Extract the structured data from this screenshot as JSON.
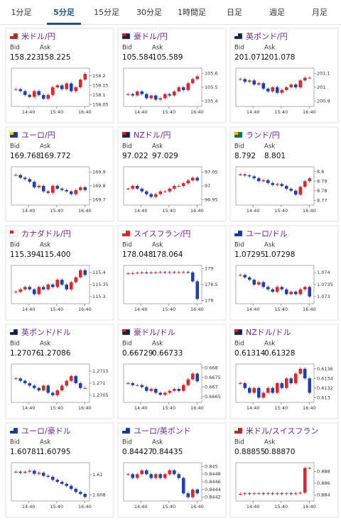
{
  "tabs": [
    "1分足",
    "5分足",
    "15分足",
    "30分足",
    "1時間足",
    "日足",
    "週足",
    "月足"
  ],
  "selected_tab": 1,
  "labels": {
    "bid": "Bid",
    "ask": "Ask"
  },
  "time_labels": [
    "14:40",
    "15:40",
    "16:40"
  ],
  "charts": [
    {
      "name": "米ドル/円",
      "bid": "158.223",
      "ask": "158.225",
      "ylim": [
        158.04,
        158.24
      ],
      "yticks": [
        158.2,
        158.15,
        158.1,
        158.05
      ],
      "values": [
        158.13,
        158.12,
        158.1,
        158.09,
        158.12,
        158.1,
        158.08,
        158.1,
        158.14,
        158.15,
        158.13,
        158.16,
        158.12,
        158.14,
        158.18,
        158.21
      ]
    },
    {
      "name": "豪ドル/円",
      "bid": "105.584",
      "ask": "105.589",
      "ylim": [
        105.36,
        105.64
      ],
      "yticks": [
        105.6,
        105.5,
        105.4
      ],
      "values": [
        105.45,
        105.44,
        105.47,
        105.45,
        105.42,
        105.44,
        105.41,
        105.42,
        105.45,
        105.44,
        105.47,
        105.5,
        105.48,
        105.53,
        105.56,
        105.58
      ]
    },
    {
      "name": "英ポンド/円",
      "bid": "201.071",
      "ask": "201.078",
      "ylim": [
        200.86,
        201.14
      ],
      "yticks": [
        201.1,
        201,
        200.9
      ],
      "values": [
        201.06,
        201.04,
        201.05,
        201.02,
        201.03,
        200.99,
        200.97,
        201.0,
        200.96,
        200.98,
        201.0,
        201.02,
        201.0,
        201.05,
        201.07,
        201.07
      ]
    },
    {
      "name": "ユーロ/円",
      "bid": "169.768",
      "ask": "169.772",
      "ylim": [
        169.66,
        169.94
      ],
      "yticks": [
        169.9,
        169.8,
        169.7
      ],
      "values": [
        169.88,
        169.86,
        169.85,
        169.83,
        169.79,
        169.8,
        169.76,
        169.75,
        169.8,
        169.78,
        169.77,
        169.76,
        169.74,
        169.77,
        169.79,
        169.77
      ]
    },
    {
      "name": "NZドル/円",
      "bid": "97.022",
      "ask": "97.029",
      "ylim": [
        96.93,
        97.07
      ],
      "yticks": [
        97.05,
        97,
        96.95
      ],
      "values": [
        96.99,
        97.0,
        96.99,
        96.98,
        96.97,
        96.96,
        96.97,
        96.98,
        96.98,
        96.99,
        97.0,
        97.0,
        97.01,
        97.02,
        97.03,
        97.02
      ]
    },
    {
      "name": "ランド/円",
      "bid": "8.792",
      "ask": "8.801",
      "ylim": [
        8.765,
        8.805
      ],
      "yticks": [
        8.8,
        8.79,
        8.78,
        8.77
      ],
      "values": [
        8.797,
        8.796,
        8.795,
        8.793,
        8.79,
        8.791,
        8.788,
        8.786,
        8.787,
        8.785,
        8.782,
        8.78,
        8.776,
        8.784,
        8.79,
        8.793
      ]
    },
    {
      "name": "カナダドル/円",
      "bid": "115.394",
      "ask": "115.400",
      "ylim": [
        115.27,
        115.43
      ],
      "yticks": [
        115.4,
        115.35,
        115.3
      ],
      "values": [
        115.32,
        115.33,
        115.34,
        115.33,
        115.31,
        115.34,
        115.33,
        115.35,
        115.34,
        115.37,
        115.35,
        115.33,
        115.36,
        115.38,
        115.41,
        115.39
      ]
    },
    {
      "name": "スイスフラン/円",
      "bid": "178.048",
      "ask": "178.064",
      "ylim": [
        177.9,
        179.1
      ],
      "yticks": [
        179,
        178.5,
        178
      ],
      "values": [
        178.85,
        178.86,
        178.87,
        178.88,
        178.87,
        178.88,
        178.88,
        178.89,
        178.88,
        178.89,
        178.88,
        178.89,
        178.89,
        178.88,
        178.6,
        178.05
      ]
    },
    {
      "name": "ユーロ/ドル",
      "bid": "1.07295",
      "ask": "1.07298",
      "ylim": [
        1.0727,
        1.0743
      ],
      "yticks": [
        1.074,
        1.0735,
        1.073
      ],
      "values": [
        1.0739,
        1.0738,
        1.0737,
        1.0735,
        1.0736,
        1.0734,
        1.0733,
        1.0732,
        1.0734,
        1.0733,
        1.0731,
        1.0732,
        1.0731,
        1.0733,
        1.0734,
        1.073
      ]
    },
    {
      "name": "英ポンド/ドル",
      "bid": "1.27076",
      "ask": "1.27086",
      "ylim": [
        1.2702,
        1.2718
      ],
      "yticks": [
        1.2715,
        1.271,
        1.2705
      ],
      "values": [
        1.2712,
        1.2711,
        1.271,
        1.2709,
        1.2708,
        1.2707,
        1.2709,
        1.2706,
        1.2705,
        1.2707,
        1.2709,
        1.2711,
        1.2713,
        1.271,
        1.2708,
        1.2708
      ]
    },
    {
      "name": "豪ドル/ドル",
      "bid": "0.66729",
      "ask": "0.66733",
      "ylim": [
        0.6662,
        0.6682
      ],
      "yticks": [
        0.668,
        0.6675,
        0.667,
        0.6665
      ],
      "values": [
        0.6672,
        0.6671,
        0.6671,
        0.667,
        0.6668,
        0.6669,
        0.6667,
        0.6666,
        0.6667,
        0.6668,
        0.6669,
        0.6668,
        0.6671,
        0.6674,
        0.6677,
        0.6673
      ]
    },
    {
      "name": "NZドル/ドル",
      "bid": "0.61314",
      "ask": "0.61328",
      "ylim": [
        0.6129,
        0.6137
      ],
      "yticks": [
        0.6136,
        0.6134,
        0.6132,
        0.613
      ],
      "values": [
        0.6133,
        0.6132,
        0.6131,
        0.6132,
        0.613,
        0.6131,
        0.6132,
        0.6131,
        0.6133,
        0.6132,
        0.6134,
        0.6133,
        0.6135,
        0.6136,
        0.6134,
        0.6131
      ]
    },
    {
      "name": "ユーロ/豪ドル",
      "bid": "1.60781",
      "ask": "1.60795",
      "ylim": [
        1.6074,
        1.6112
      ],
      "yticks": [
        1.61,
        1.608
      ],
      "values": [
        1.6103,
        1.6102,
        1.6103,
        1.6104,
        1.6101,
        1.6102,
        1.6099,
        1.6098,
        1.6095,
        1.6093,
        1.6091,
        1.6089,
        1.6086,
        1.6083,
        1.6081,
        1.6078
      ]
    },
    {
      "name": "ユーロ/英ポンド",
      "bid": "0.84427",
      "ask": "0.84435",
      "ylim": [
        0.8441,
        0.8451
      ],
      "yticks": [
        0.845,
        0.8448,
        0.8446,
        0.8444,
        0.8442
      ],
      "values": [
        0.8448,
        0.8447,
        0.8448,
        0.8449,
        0.8448,
        0.8447,
        0.8448,
        0.8447,
        0.8448,
        0.8449,
        0.8448,
        0.8447,
        0.8443,
        0.8442,
        0.8444,
        0.8443
      ]
    },
    {
      "name": "米ドル/スイスフラン",
      "bid": "0.88855",
      "ask": "0.88870",
      "ylim": [
        0.883,
        0.8895
      ],
      "yticks": [
        0.888,
        0.886,
        0.884
      ],
      "values": [
        0.8842,
        0.8843,
        0.8842,
        0.8843,
        0.8843,
        0.8842,
        0.8843,
        0.8842,
        0.8843,
        0.8842,
        0.8843,
        0.8842,
        0.8843,
        0.8844,
        0.8886,
        0.8886
      ]
    }
  ]
}
